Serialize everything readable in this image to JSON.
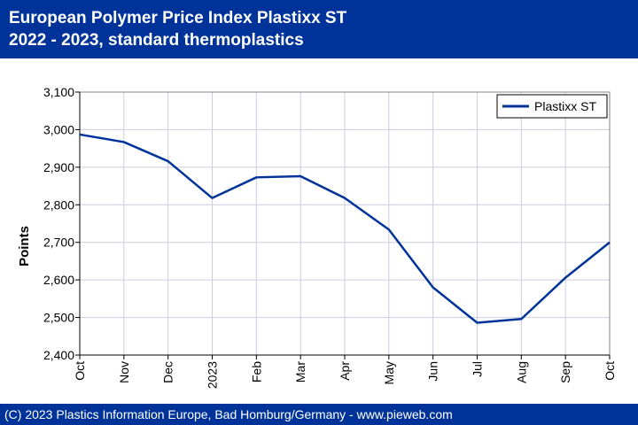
{
  "header": {
    "title_line1": "European Polymer Price Index Plastixx ST",
    "title_line2": "2022 - 2023, standard thermoplastics"
  },
  "footer": {
    "text": "(C) 2023 Plastics Information Europe, Bad Homburg/Germany - www.pieweb.com"
  },
  "colors": {
    "banner": "#003399",
    "series_line": "#003399",
    "grid": "#ccccdd"
  },
  "chart_data": {
    "type": "line",
    "title": "European Polymer Price Index Plastixx ST",
    "subtitle": "2022 - 2023, standard thermoplastics",
    "xlabel": "",
    "ylabel": "Points",
    "categories": [
      "Oct",
      "Nov",
      "Dec",
      "2023",
      "Feb",
      "Mar",
      "Apr",
      "May",
      "Jun",
      "Jul",
      "Aug",
      "Sep",
      "Oct"
    ],
    "y_ticks": [
      "2,400",
      "2,500",
      "2,600",
      "2,700",
      "2,800",
      "2,900",
      "3,000",
      "3,100"
    ],
    "ylim": [
      2400,
      3100
    ],
    "grid": true,
    "legend_position": "top-right",
    "series": [
      {
        "name": "Plastixx ST",
        "values": [
          2987,
          2967,
          2916,
          2818,
          2873,
          2876,
          2818,
          2734,
          2580,
          2486,
          2496,
          2606,
          2700
        ]
      }
    ]
  }
}
